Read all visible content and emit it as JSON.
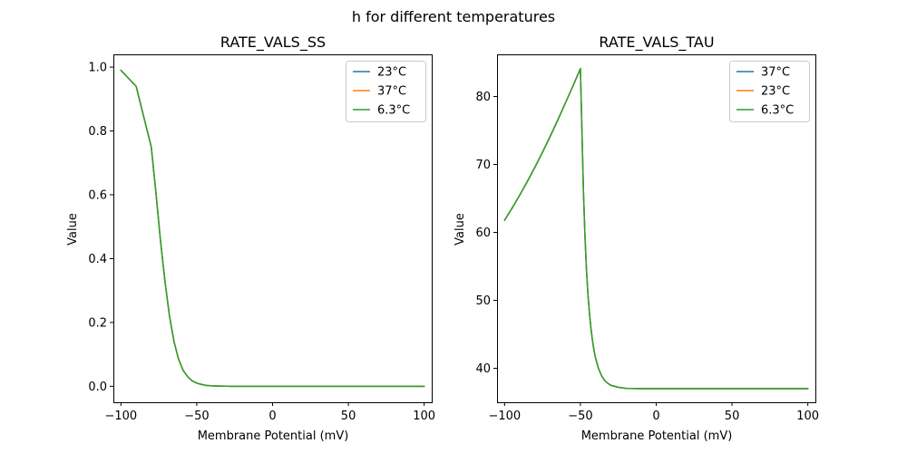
{
  "figure": {
    "suptitle": "h for different temperatures"
  },
  "chart_data": [
    {
      "type": "line",
      "title": "RATE_VALS_SS",
      "xlabel": "Membrane Potential (mV)",
      "ylabel": "Value",
      "xlim": [
        -105,
        105
      ],
      "ylim": [
        -0.05,
        1.04
      ],
      "xticks": [
        -100,
        -50,
        0,
        50,
        100
      ],
      "yticks": [
        0.0,
        0.2,
        0.4,
        0.6,
        0.8,
        1.0
      ],
      "xtick_labels": [
        "−100",
        "−50",
        "0",
        "50",
        "100"
      ],
      "ytick_labels": [
        "0.0",
        "0.2",
        "0.4",
        "0.6",
        "0.8",
        "1.0"
      ],
      "grid": false,
      "legend_position": "top-right",
      "x": [
        -100,
        -90,
        -80,
        -77,
        -74,
        -71,
        -68,
        -65,
        -62,
        -59,
        -56,
        -53,
        -50,
        -47,
        -44,
        -40,
        -35,
        -30,
        -20,
        0,
        50,
        100
      ],
      "series": [
        {
          "name": "23°C",
          "color": "#1f77b4",
          "values": [
            0.99,
            0.94,
            0.75,
            0.61,
            0.46,
            0.33,
            0.22,
            0.14,
            0.085,
            0.05,
            0.03,
            0.017,
            0.01,
            0.006,
            0.003,
            0.0015,
            0.0006,
            0.0002,
            0.0,
            0.0,
            0.0,
            0.0
          ]
        },
        {
          "name": "37°C",
          "color": "#ff7f0e",
          "values": [
            0.99,
            0.94,
            0.75,
            0.61,
            0.46,
            0.33,
            0.22,
            0.14,
            0.085,
            0.05,
            0.03,
            0.017,
            0.01,
            0.006,
            0.003,
            0.0015,
            0.0006,
            0.0002,
            0.0,
            0.0,
            0.0,
            0.0
          ]
        },
        {
          "name": "6.3°C",
          "color": "#2ca02c",
          "values": [
            0.99,
            0.94,
            0.75,
            0.61,
            0.46,
            0.33,
            0.22,
            0.14,
            0.085,
            0.05,
            0.03,
            0.017,
            0.01,
            0.006,
            0.003,
            0.0015,
            0.0006,
            0.0002,
            0.0,
            0.0,
            0.0,
            0.0
          ]
        }
      ]
    },
    {
      "type": "line",
      "title": "RATE_VALS_TAU",
      "xlabel": "Membrane Potential (mV)",
      "ylabel": "Value",
      "xlim": [
        -105,
        105
      ],
      "ylim": [
        35.0,
        86.2
      ],
      "xticks": [
        -100,
        -50,
        0,
        50,
        100
      ],
      "yticks": [
        40,
        50,
        60,
        70,
        80
      ],
      "xtick_labels": [
        "−100",
        "−50",
        "0",
        "50",
        "100"
      ],
      "ytick_labels": [
        "40",
        "50",
        "60",
        "70",
        "80"
      ],
      "grid": false,
      "legend_position": "top-right",
      "x": [
        -100,
        -95,
        -90,
        -85,
        -80,
        -75,
        -70,
        -65,
        -60,
        -55,
        -50,
        -49,
        -48,
        -47,
        -46,
        -45,
        -44,
        -43,
        -42,
        -41,
        -40,
        -38,
        -36,
        -34,
        -32,
        -30,
        -25,
        -20,
        -10,
        0,
        50,
        100
      ],
      "series": [
        {
          "name": "37°C",
          "color": "#1f77b4",
          "values": [
            61.8,
            63.6,
            65.5,
            67.5,
            69.6,
            71.8,
            74.1,
            76.5,
            79.0,
            81.5,
            84.1,
            75.0,
            66.0,
            59.5,
            54.5,
            50.8,
            48.0,
            45.8,
            44.0,
            42.6,
            41.5,
            39.9,
            38.9,
            38.2,
            37.8,
            37.5,
            37.2,
            37.05,
            37.0,
            37.0,
            37.0,
            37.0
          ]
        },
        {
          "name": "23°C",
          "color": "#ff7f0e",
          "values": [
            61.8,
            63.6,
            65.5,
            67.5,
            69.6,
            71.8,
            74.1,
            76.5,
            79.0,
            81.5,
            84.1,
            75.0,
            66.0,
            59.5,
            54.5,
            50.8,
            48.0,
            45.8,
            44.0,
            42.6,
            41.5,
            39.9,
            38.9,
            38.2,
            37.8,
            37.5,
            37.2,
            37.05,
            37.0,
            37.0,
            37.0,
            37.0
          ]
        },
        {
          "name": "6.3°C",
          "color": "#2ca02c",
          "values": [
            61.8,
            63.6,
            65.5,
            67.5,
            69.6,
            71.8,
            74.1,
            76.5,
            79.0,
            81.5,
            84.1,
            75.0,
            66.0,
            59.5,
            54.5,
            50.8,
            48.0,
            45.8,
            44.0,
            42.6,
            41.5,
            39.9,
            38.9,
            38.2,
            37.8,
            37.5,
            37.2,
            37.05,
            37.0,
            37.0,
            37.0,
            37.0
          ]
        }
      ]
    }
  ]
}
